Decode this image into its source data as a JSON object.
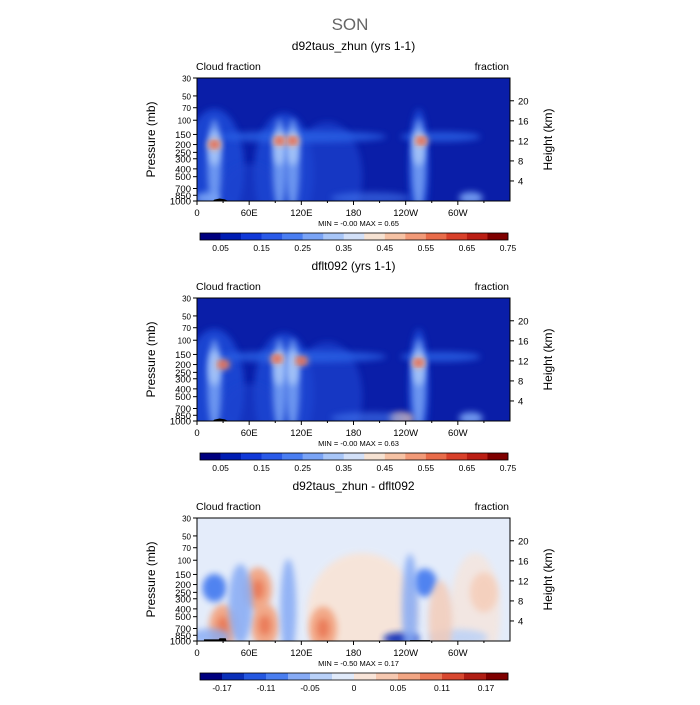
{
  "page": {
    "title": "SON",
    "colors": {
      "background": "#ffffff",
      "axis": "#000000",
      "topography": "#000000"
    }
  },
  "chart_data": [
    {
      "type": "heatmap",
      "title": "d92taus_zhun (yrs 1-1)",
      "left_label": "Cloud fraction",
      "right_label": "fraction",
      "ylabel": "Pressure (mb)",
      "ylabel_right": "Height (km)",
      "xticks": [
        "0",
        "60E",
        "120E",
        "180",
        "120W",
        "60W"
      ],
      "yticks_left": [
        "30",
        "50",
        "70",
        "100",
        "150",
        "200",
        "250",
        "300",
        "400",
        "500",
        "700",
        "850",
        "1000"
      ],
      "yticks_right": [
        "20",
        "16",
        "12",
        "8",
        "4"
      ],
      "stats": "MIN =   -0.00   MAX =    0.65",
      "colorbar": {
        "labels": [
          "0.05",
          "0.15",
          "0.25",
          "0.35",
          "0.45",
          "0.55",
          "0.65",
          "0.75"
        ],
        "colors": [
          "#00007f",
          "#001db3",
          "#1038d8",
          "#2a5ae8",
          "#4a7ef2",
          "#7aa4f6",
          "#a8c6f8",
          "#d2e0f8",
          "#f6e2d2",
          "#f6c2a4",
          "#f29a78",
          "#e86c4a",
          "#d8402a",
          "#bb1e14",
          "#7f0000"
        ]
      },
      "features": {
        "cloud_top_maxima": [
          {
            "lon": 20,
            "p": 200,
            "value": 0.65
          },
          {
            "lon": 95,
            "p": 180,
            "value": 0.55
          },
          {
            "lon": 110,
            "p": 180,
            "value": 0.55
          },
          {
            "lon": 258,
            "p": 180,
            "value": 0.6
          }
        ],
        "boundary_layer_maxima": [
          {
            "lon": 12,
            "p": 925,
            "value": 0.45
          },
          {
            "lon": 315,
            "p": 915,
            "value": 0.4
          }
        ]
      }
    },
    {
      "type": "heatmap",
      "title": "dflt092 (yrs 1-1)",
      "left_label": "Cloud fraction",
      "right_label": "fraction",
      "ylabel": "Pressure (mb)",
      "ylabel_right": "Height (km)",
      "xticks": [
        "0",
        "60E",
        "120E",
        "180",
        "120W",
        "60W"
      ],
      "yticks_left": [
        "30",
        "50",
        "70",
        "100",
        "150",
        "200",
        "250",
        "300",
        "400",
        "500",
        "700",
        "850",
        "1000"
      ],
      "yticks_right": [
        "20",
        "16",
        "12",
        "8",
        "4"
      ],
      "stats": "MIN =   -0.00   MAX =    0.63",
      "colorbar": {
        "labels": [
          "0.05",
          "0.15",
          "0.25",
          "0.35",
          "0.45",
          "0.55",
          "0.65",
          "0.75"
        ],
        "colors": [
          "#00007f",
          "#001db3",
          "#1038d8",
          "#2a5ae8",
          "#4a7ef2",
          "#7aa4f6",
          "#a8c6f8",
          "#d2e0f8",
          "#f6e2d2",
          "#f6c2a4",
          "#f29a78",
          "#e86c4a",
          "#d8402a",
          "#bb1e14",
          "#7f0000"
        ]
      },
      "features": {
        "cloud_top_maxima": [
          {
            "lon": 30,
            "p": 200,
            "value": 0.6
          },
          {
            "lon": 92,
            "p": 170,
            "value": 0.55
          },
          {
            "lon": 120,
            "p": 180,
            "value": 0.5
          },
          {
            "lon": 255,
            "p": 190,
            "value": 0.6
          }
        ],
        "boundary_layer_maxima": [
          {
            "lon": 235,
            "p": 930,
            "value": 0.6
          },
          {
            "lon": 315,
            "p": 920,
            "value": 0.5
          }
        ]
      }
    },
    {
      "type": "heatmap",
      "title": "d92taus_zhun - dflt092",
      "left_label": "Cloud fraction",
      "right_label": "fraction",
      "ylabel": "Pressure (mb)",
      "ylabel_right": "Height (km)",
      "xticks": [
        "0",
        "60E",
        "120E",
        "180",
        "120W",
        "60W"
      ],
      "yticks_left": [
        "30",
        "50",
        "70",
        "100",
        "150",
        "200",
        "250",
        "300",
        "400",
        "500",
        "700",
        "850",
        "1000"
      ],
      "yticks_right": [
        "20",
        "16",
        "12",
        "8",
        "4"
      ],
      "stats": "MIN =   -0.50   MAX =    0.17",
      "colorbar": {
        "labels": [
          "-0.17",
          "-0.11",
          "-0.05",
          "0",
          "0.05",
          "0.11",
          "0.17"
        ],
        "colors": [
          "#00007f",
          "#0a2fb8",
          "#2457e0",
          "#4a7ef0",
          "#86aaf4",
          "#b8d0f8",
          "#e0eafa",
          "#f8e4d8",
          "#f6c8b0",
          "#f2a684",
          "#ea7a58",
          "#d84830",
          "#b01e14",
          "#7f0000"
        ]
      },
      "features": {
        "positive_maxima": [
          {
            "lon": 30,
            "p": 660,
            "value": 0.15
          },
          {
            "lon": 70,
            "p": 230,
            "value": 0.12
          },
          {
            "lon": 78,
            "p": 640,
            "value": 0.14
          },
          {
            "lon": 145,
            "p": 700,
            "value": 0.1
          }
        ],
        "negative_minima": [
          {
            "lon": 20,
            "p": 220,
            "value": -0.15
          },
          {
            "lon": 262,
            "p": 190,
            "value": -0.2
          },
          {
            "lon": 235,
            "p": 935,
            "value": -0.5
          }
        ]
      }
    }
  ]
}
